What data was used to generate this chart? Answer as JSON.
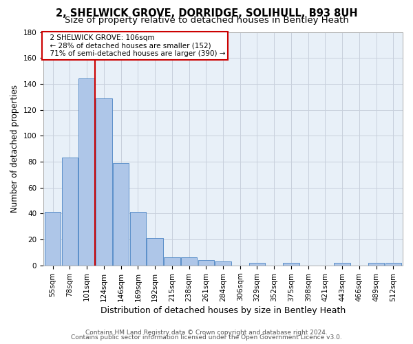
{
  "title1": "2, SHELWICK GROVE, DORRIDGE, SOLIHULL, B93 8UH",
  "title2": "Size of property relative to detached houses in Bentley Heath",
  "xlabel": "Distribution of detached houses by size in Bentley Heath",
  "ylabel": "Number of detached properties",
  "footer1": "Contains HM Land Registry data © Crown copyright and database right 2024.",
  "footer2": "Contains public sector information licensed under the Open Government Licence v3.0.",
  "annotation_line1": "2 SHELWICK GROVE: 106sqm",
  "annotation_line2": "← 28% of detached houses are smaller (152)",
  "annotation_line3": "71% of semi-detached houses are larger (390) →",
  "bar_categories": [
    "55sqm",
    "78sqm",
    "101sqm",
    "124sqm",
    "146sqm",
    "169sqm",
    "192sqm",
    "215sqm",
    "238sqm",
    "261sqm",
    "284sqm",
    "306sqm",
    "329sqm",
    "352sqm",
    "375sqm",
    "398sqm",
    "421sqm",
    "443sqm",
    "466sqm",
    "489sqm",
    "512sqm"
  ],
  "bar_values": [
    41,
    83,
    144,
    129,
    79,
    41,
    21,
    6,
    6,
    4,
    3,
    0,
    2,
    0,
    2,
    0,
    0,
    2,
    0,
    2,
    2
  ],
  "bar_color": "#aec6e8",
  "bar_edge_color": "#5b8fc9",
  "vline_color": "#cc0000",
  "vline_x_index": 2,
  "ylim": [
    0,
    180
  ],
  "yticks": [
    0,
    20,
    40,
    60,
    80,
    100,
    120,
    140,
    160,
    180
  ],
  "bg_color": "#ffffff",
  "plot_bg_color": "#e8f0f8",
  "grid_color": "#c8d0dc",
  "annotation_box_color": "#cc0000",
  "title1_fontsize": 10.5,
  "title2_fontsize": 9.5,
  "axis_label_fontsize": 8.5,
  "tick_fontsize": 7.5,
  "footer_fontsize": 6.5,
  "annotation_fontsize": 7.5
}
